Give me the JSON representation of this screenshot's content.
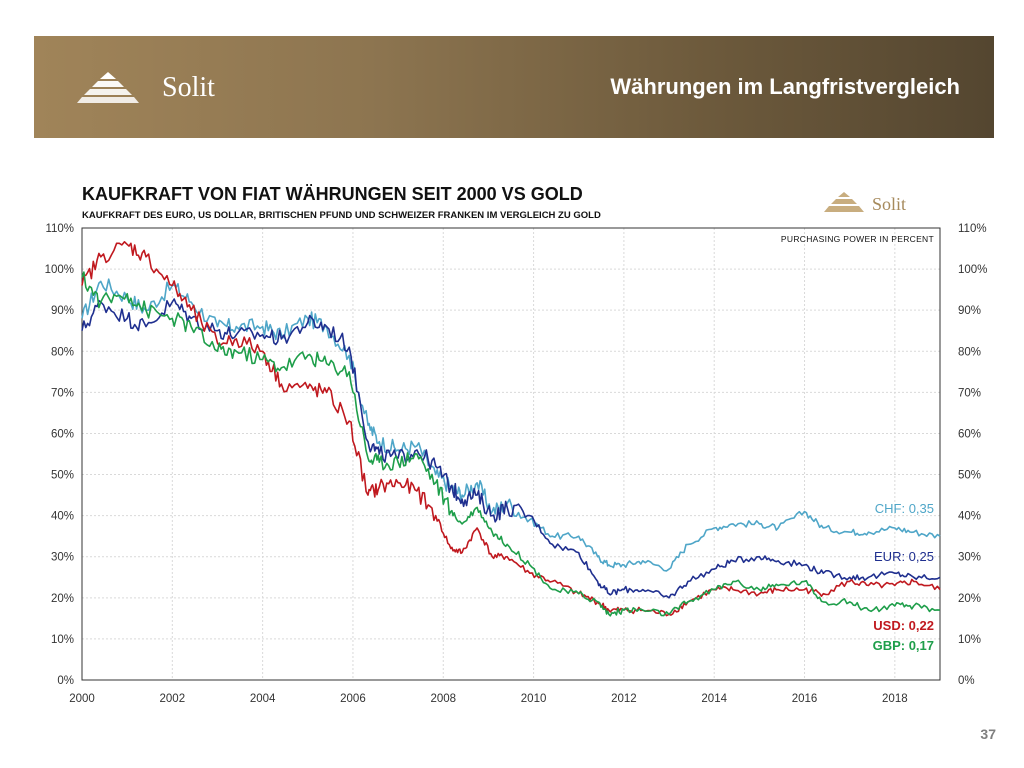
{
  "header": {
    "brand": "Solit",
    "title": "Währungen im Langfristvergleich",
    "colors": {
      "gradient_start": "#a08459",
      "gradient_end": "#544630"
    }
  },
  "page_number": "37",
  "chart_data": {
    "type": "line",
    "title": "KAUFKRAFT VON FIAT WÄHRUNGEN SEIT 2000 VS GOLD",
    "subtitle": "KAUFKRAFT DES EURO, US DOLLAR, BRITISCHEN PFUND UND SCHWEIZER FRANKEN IM VERGLEICH ZU GOLD",
    "annotation": "PURCHASING POWER IN PERCENT",
    "logo_text": "Solit",
    "x_ticks": [
      "2000",
      "2002",
      "2004",
      "2006",
      "2008",
      "2010",
      "2012",
      "2014",
      "2016",
      "2018"
    ],
    "y_ticks": [
      "0%",
      "10%",
      "20%",
      "30%",
      "40%",
      "50%",
      "60%",
      "70%",
      "80%",
      "90%",
      "100%",
      "110%"
    ],
    "xlim": [
      "2000-01",
      "2019-01"
    ],
    "ylim": [
      0,
      110
    ],
    "grid": true,
    "series": [
      {
        "name": "CHF",
        "label": "CHF: 0,35",
        "color": "#4fa6c8",
        "x": [
          "2000-01",
          "2000-06",
          "2001-01",
          "2001-06",
          "2002-01",
          "2002-06",
          "2003-01",
          "2003-06",
          "2004-01",
          "2004-06",
          "2005-01",
          "2005-06",
          "2005-12",
          "2006-05",
          "2006-08",
          "2007-01",
          "2007-06",
          "2007-11",
          "2008-03",
          "2008-06",
          "2008-10",
          "2009-02",
          "2009-06",
          "2009-12",
          "2010-06",
          "2011-01",
          "2011-06",
          "2011-09",
          "2012-01",
          "2012-06",
          "2013-01",
          "2013-06",
          "2014-01",
          "2014-06",
          "2015-01",
          "2015-06",
          "2016-01",
          "2016-06",
          "2017-01",
          "2017-06",
          "2018-01",
          "2018-06",
          "2019-01"
        ],
        "y": [
          88,
          97,
          93,
          90,
          96,
          92,
          86,
          86,
          86,
          84,
          88,
          86,
          79,
          62,
          58,
          56,
          57,
          50,
          47,
          45,
          48,
          41,
          43,
          39,
          35,
          35,
          30,
          28,
          28,
          29,
          27,
          33,
          37,
          38,
          38,
          37,
          41,
          37,
          36,
          36,
          37,
          36,
          35
        ]
      },
      {
        "name": "EUR",
        "label": "EUR: 0,25",
        "color": "#1f2f8f",
        "x": [
          "2000-01",
          "2000-06",
          "2001-01",
          "2001-06",
          "2002-01",
          "2002-06",
          "2003-01",
          "2003-06",
          "2004-01",
          "2004-06",
          "2005-01",
          "2005-06",
          "2005-12",
          "2006-05",
          "2006-08",
          "2007-01",
          "2007-06",
          "2007-11",
          "2008-03",
          "2008-06",
          "2008-10",
          "2009-02",
          "2009-06",
          "2009-12",
          "2010-06",
          "2011-01",
          "2011-06",
          "2011-09",
          "2012-01",
          "2012-06",
          "2013-01",
          "2013-06",
          "2014-01",
          "2014-06",
          "2015-01",
          "2015-06",
          "2016-01",
          "2016-06",
          "2017-01",
          "2017-06",
          "2018-01",
          "2018-06",
          "2019-01"
        ],
        "y": [
          85,
          92,
          88,
          86,
          92,
          88,
          85,
          84,
          84,
          83,
          87,
          86,
          81,
          58,
          55,
          54,
          56,
          52,
          47,
          44,
          45,
          40,
          42,
          40,
          33,
          31,
          24,
          21,
          22,
          22,
          20,
          24,
          27,
          29,
          30,
          29,
          28,
          26,
          25,
          25,
          26,
          25,
          25
        ]
      },
      {
        "name": "USD",
        "label": "USD: 0,22",
        "color": "#c0191f",
        "x": [
          "2000-01",
          "2000-06",
          "2001-01",
          "2001-06",
          "2002-01",
          "2002-06",
          "2003-01",
          "2003-06",
          "2004-01",
          "2004-06",
          "2005-01",
          "2005-06",
          "2005-12",
          "2006-05",
          "2006-08",
          "2007-01",
          "2007-06",
          "2007-11",
          "2008-03",
          "2008-06",
          "2008-10",
          "2009-02",
          "2009-06",
          "2009-12",
          "2010-06",
          "2011-01",
          "2011-06",
          "2011-09",
          "2012-01",
          "2012-06",
          "2013-01",
          "2013-06",
          "2014-01",
          "2014-06",
          "2015-01",
          "2015-06",
          "2016-01",
          "2016-06",
          "2017-01",
          "2017-06",
          "2018-01",
          "2018-06",
          "2019-01"
        ],
        "y": [
          96,
          103,
          106,
          103,
          96,
          90,
          82,
          83,
          80,
          72,
          71,
          70,
          63,
          45,
          47,
          48,
          46,
          40,
          32,
          31,
          37,
          30,
          30,
          26,
          24,
          21,
          19,
          17,
          17,
          17,
          16,
          19,
          22,
          22,
          21,
          22,
          22,
          21,
          24,
          23,
          23,
          24,
          22
        ]
      },
      {
        "name": "GBP",
        "label": "GBP: 0,17",
        "color": "#1e9e4a",
        "x": [
          "2000-01",
          "2000-06",
          "2001-01",
          "2001-06",
          "2002-01",
          "2002-06",
          "2003-01",
          "2003-06",
          "2004-01",
          "2004-06",
          "2005-01",
          "2005-06",
          "2005-12",
          "2006-05",
          "2006-08",
          "2007-01",
          "2007-06",
          "2007-11",
          "2008-03",
          "2008-06",
          "2008-10",
          "2009-02",
          "2009-06",
          "2009-12",
          "2010-06",
          "2011-01",
          "2011-06",
          "2011-09",
          "2012-01",
          "2012-06",
          "2013-01",
          "2013-06",
          "2014-01",
          "2014-06",
          "2015-01",
          "2015-06",
          "2016-01",
          "2016-06",
          "2017-01",
          "2017-06",
          "2018-01",
          "2018-06",
          "2019-01"
        ],
        "y": [
          98,
          92,
          94,
          90,
          88,
          86,
          80,
          80,
          78,
          76,
          79,
          77,
          75,
          54,
          53,
          53,
          55,
          48,
          41,
          38,
          42,
          36,
          33,
          28,
          22,
          21,
          19,
          16,
          17,
          17,
          16,
          19,
          22,
          24,
          22,
          23,
          24,
          19,
          19,
          17,
          18,
          18,
          17
        ]
      }
    ]
  }
}
